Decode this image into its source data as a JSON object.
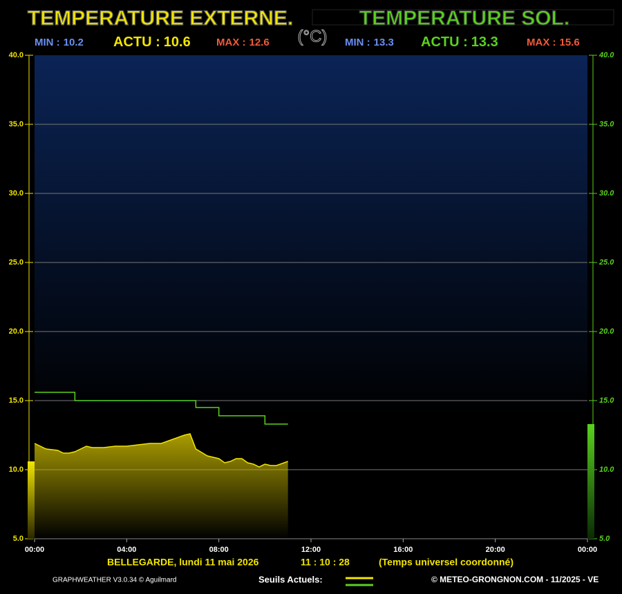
{
  "chart_data": {
    "type": "line",
    "unit": "(°C)",
    "series": [
      {
        "name": "TEMPERATURE EXTERNE.",
        "color": "#f2e600",
        "axis": "y",
        "x": [
          0,
          0.5,
          1.0,
          1.25,
          1.5,
          1.75,
          2.0,
          2.25,
          2.5,
          3.0,
          3.5,
          4.0,
          4.5,
          5.0,
          5.5,
          6.0,
          6.5,
          6.75,
          7.0,
          7.5,
          8.0,
          8.25,
          8.5,
          8.75,
          9.0,
          9.25,
          9.5,
          9.75,
          10.0,
          10.25,
          10.5,
          11.0
        ],
        "values": [
          11.9,
          11.5,
          11.4,
          11.2,
          11.2,
          11.3,
          11.5,
          11.7,
          11.6,
          11.6,
          11.7,
          11.7,
          11.8,
          11.9,
          11.9,
          12.2,
          12.5,
          12.6,
          11.5,
          11.0,
          10.8,
          10.5,
          10.6,
          10.8,
          10.8,
          10.5,
          10.4,
          10.2,
          10.4,
          10.3,
          10.3,
          10.6
        ],
        "min_label": "MIN :",
        "min": 10.2,
        "actu_label": "ACTU :",
        "actu": 10.6,
        "max_label": "MAX :",
        "max": 12.6
      },
      {
        "name": "TEMPERATURE SOL.",
        "color": "#5ad21e",
        "axis": "y2",
        "x": [
          0,
          1.75,
          1.75,
          7.0,
          7.0,
          8.0,
          8.0,
          10.0,
          10.0,
          11.0
        ],
        "values": [
          15.6,
          15.6,
          15.0,
          15.0,
          14.5,
          14.5,
          13.9,
          13.9,
          13.3,
          13.3
        ],
        "min_label": "MIN :",
        "min": 13.3,
        "actu_label": "ACTU :",
        "actu": 13.3,
        "max_label": "MAX :",
        "max": 15.6
      }
    ],
    "xlim": [
      0,
      24
    ],
    "xticks": [
      {
        "value": 0,
        "label": "00:00"
      },
      {
        "value": 4,
        "label": "04:00"
      },
      {
        "value": 8,
        "label": "08:00"
      },
      {
        "value": 12,
        "label": "12:00"
      },
      {
        "value": 16,
        "label": "16:00"
      },
      {
        "value": 20,
        "label": "20:00"
      },
      {
        "value": 24,
        "label": "00:00"
      }
    ],
    "ylim": [
      5,
      40
    ],
    "yticks": [
      {
        "value": 5,
        "label": "5.0"
      },
      {
        "value": 10,
        "label": "10.0"
      },
      {
        "value": 15,
        "label": "15.0"
      },
      {
        "value": 20,
        "label": "20.0"
      },
      {
        "value": 25,
        "label": "25.0"
      },
      {
        "value": 30,
        "label": "30.0"
      },
      {
        "value": 35,
        "label": "35.0"
      },
      {
        "value": 40,
        "label": "40.0"
      }
    ],
    "y2lim": [
      5,
      40
    ],
    "y2ticks": [
      {
        "value": 5,
        "label": "5.0"
      },
      {
        "value": 10,
        "label": "10.0"
      },
      {
        "value": 15,
        "label": "15.0"
      },
      {
        "value": 20,
        "label": "20.0"
      },
      {
        "value": 25,
        "label": "25.0"
      },
      {
        "value": 30,
        "label": "30.0"
      },
      {
        "value": 35,
        "label": "35.0"
      },
      {
        "value": 40,
        "label": "40.0"
      }
    ],
    "grid": true,
    "footer": {
      "place": "BELLEGARDE,  lundi 11 mai 2026",
      "time": "11 : 10 : 28",
      "tz": "(Temps universel coordonné)",
      "credit": "GRAPHWEATHER V3.0.34 © Aguilmard",
      "thresholds": "Seuils Actuels:",
      "site": "© METEO-GRONGNON.COM - 11/2025 - VE"
    }
  }
}
